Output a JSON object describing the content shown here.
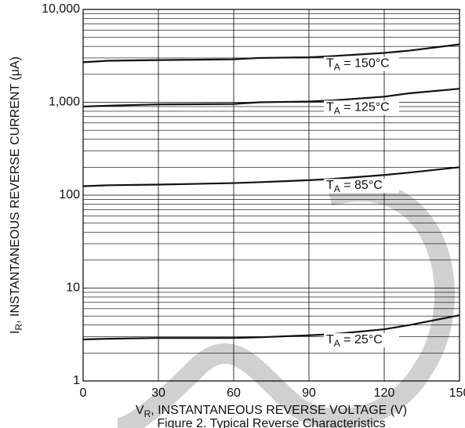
{
  "chart_data": {
    "type": "line",
    "x_label": "VR, INSTANTANEOUS REVERSE VOLTAGE (V)",
    "y_label": "IR, INSTANTANEOUS REVERSE CURRENT (μA)",
    "caption": "Figure 2. Typical Reverse Characteristics",
    "log_y": true,
    "grid": true,
    "x": [
      0,
      10,
      30,
      60,
      70,
      90,
      100,
      120,
      130,
      150
    ],
    "series": [
      {
        "name": "TA = 150°C",
        "color": "#111111",
        "values": [
          2700,
          2800,
          2850,
          2900,
          3000,
          3050,
          3150,
          3400,
          3600,
          4200
        ]
      },
      {
        "name": "TA = 125°C",
        "color": "#111111",
        "values": [
          900,
          920,
          950,
          960,
          1000,
          1020,
          1050,
          1150,
          1250,
          1400
        ]
      },
      {
        "name": "TA = 85°C",
        "color": "#111111",
        "values": [
          125,
          128,
          130,
          135,
          138,
          145,
          150,
          165,
          175,
          200
        ]
      },
      {
        "name": "TA = 25°C",
        "color": "#111111",
        "values": [
          2.8,
          2.85,
          2.9,
          2.9,
          2.95,
          3.1,
          3.2,
          3.6,
          4.0,
          5.1
        ]
      }
    ],
    "xlim": [
      0,
      150
    ],
    "xticks": [
      0,
      30,
      60,
      90,
      120,
      150
    ],
    "ylim": [
      1,
      10000
    ],
    "yticks": [
      1,
      10,
      100,
      {
        "value": 1000,
        "label": "1,000"
      },
      {
        "value": 10000,
        "label": "10,000"
      }
    ],
    "yminorticks": [
      2,
      3,
      4,
      5,
      6,
      7,
      8,
      9,
      20,
      30,
      40,
      50,
      60,
      70,
      80,
      90,
      200,
      300,
      400,
      500,
      600,
      700,
      800,
      900,
      2000,
      3000,
      4000,
      5000,
      6000,
      7000,
      8000,
      9000
    ]
  }
}
